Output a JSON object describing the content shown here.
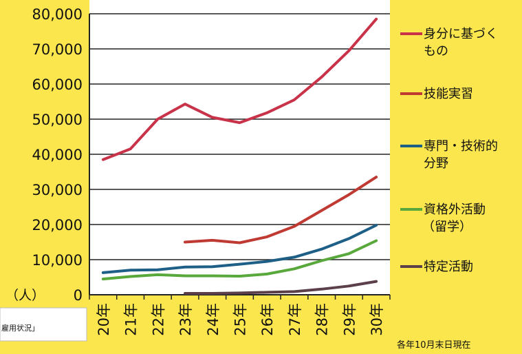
{
  "chart_data": {
    "type": "line",
    "unit_label": "（人）",
    "note": "各年10月末日現在",
    "source_fragment": "雇用状況」",
    "categories": [
      "20年",
      "21年",
      "22年",
      "23年",
      "24年",
      "25年",
      "26年",
      "27年",
      "28年",
      "29年",
      "30年"
    ],
    "ylim": [
      0,
      80000
    ],
    "yticks": [
      0,
      10000,
      20000,
      30000,
      40000,
      50000,
      60000,
      70000,
      80000
    ],
    "ytick_labels": [
      "0",
      "10,000",
      "20,000",
      "30,000",
      "40,000",
      "50,000",
      "60,000",
      "70,000",
      "80,000"
    ],
    "grid": true,
    "legend_position": "right",
    "series": [
      {
        "name": "身分に基づくもの",
        "legend_lines": [
          "身分に基づく",
          "もの"
        ],
        "color": "#c8334a",
        "values": [
          38500,
          41500,
          50000,
          54300,
          50500,
          49000,
          51800,
          55500,
          62000,
          69500,
          78500
        ]
      },
      {
        "name": "技能実習",
        "legend_lines": [
          "技能実習"
        ],
        "color": "#c03a34",
        "values": [
          null,
          null,
          null,
          15000,
          15500,
          14800,
          16500,
          19500,
          24000,
          28500,
          33500
        ]
      },
      {
        "name": "専門・技術的分野",
        "legend_lines": [
          "専門・技術的",
          "分野"
        ],
        "color": "#1d5f86",
        "values": [
          6300,
          7000,
          7100,
          7900,
          8000,
          8700,
          9500,
          10700,
          13000,
          16000,
          19800
        ]
      },
      {
        "name": "資格外活動（留学）",
        "legend_lines": [
          "資格外活動",
          "（留学）"
        ],
        "color": "#58a83b",
        "values": [
          4500,
          5200,
          5700,
          5400,
          5400,
          5300,
          5900,
          7400,
          9700,
          11700,
          15400
        ]
      },
      {
        "name": "特定活動",
        "legend_lines": [
          "特定活動"
        ],
        "color": "#5b3f4b",
        "values": [
          null,
          null,
          null,
          400,
          400,
          500,
          700,
          900,
          1600,
          2500,
          3800
        ]
      }
    ]
  }
}
